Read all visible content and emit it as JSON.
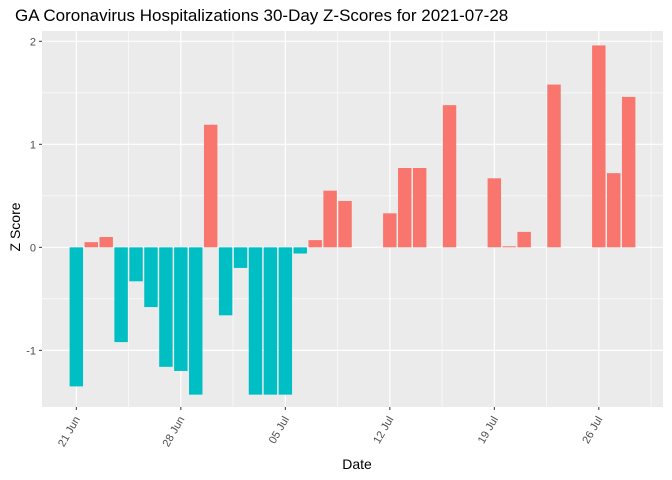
{
  "chart_data": {
    "type": "bar",
    "title": "GA Coronavirus Hospitalizations 30-Day Z-Scores for 2021-07-28",
    "xlabel": "Date",
    "ylabel": "Z Score",
    "ylim": [
      -1.55,
      2.1
    ],
    "yticks": [
      -1,
      0,
      1,
      2
    ],
    "xtick_labels": [
      "21 Jun",
      "28 Jun",
      "05 Jul",
      "12 Jul",
      "19 Jul",
      "26 Jul"
    ],
    "xtick_days": [
      0,
      7,
      14,
      21,
      28,
      35
    ],
    "x_range_days": [
      -2.3,
      39.3
    ],
    "colors": {
      "positive": "#F8766D",
      "negative": "#00BFC4",
      "panel": "#EBEBEB",
      "grid": "#FFFFFF"
    },
    "points": [
      {
        "day": 0,
        "value": -1.35
      },
      {
        "day": 1,
        "value": 0.05
      },
      {
        "day": 2,
        "value": 0.1
      },
      {
        "day": 3,
        "value": -0.92
      },
      {
        "day": 4,
        "value": -0.33
      },
      {
        "day": 5,
        "value": -0.58
      },
      {
        "day": 6,
        "value": -1.16
      },
      {
        "day": 7,
        "value": -1.2
      },
      {
        "day": 8,
        "value": -1.43
      },
      {
        "day": 9,
        "value": 1.19
      },
      {
        "day": 10,
        "value": -0.66
      },
      {
        "day": 11,
        "value": -0.2
      },
      {
        "day": 12,
        "value": -1.43
      },
      {
        "day": 13,
        "value": -1.43
      },
      {
        "day": 14,
        "value": -1.43
      },
      {
        "day": 15,
        "value": -0.06
      },
      {
        "day": 16,
        "value": 0.07
      },
      {
        "day": 17,
        "value": 0.55
      },
      {
        "day": 18,
        "value": 0.45
      },
      {
        "day": 21,
        "value": 0.33
      },
      {
        "day": 22,
        "value": 0.77
      },
      {
        "day": 23,
        "value": 0.77
      },
      {
        "day": 25,
        "value": 1.38
      },
      {
        "day": 28,
        "value": 0.67
      },
      {
        "day": 29,
        "value": 0.01
      },
      {
        "day": 30,
        "value": 0.15
      },
      {
        "day": 32,
        "value": 1.58
      },
      {
        "day": 35,
        "value": 1.96
      },
      {
        "day": 36,
        "value": 0.72
      },
      {
        "day": 37,
        "value": 1.46
      }
    ]
  }
}
